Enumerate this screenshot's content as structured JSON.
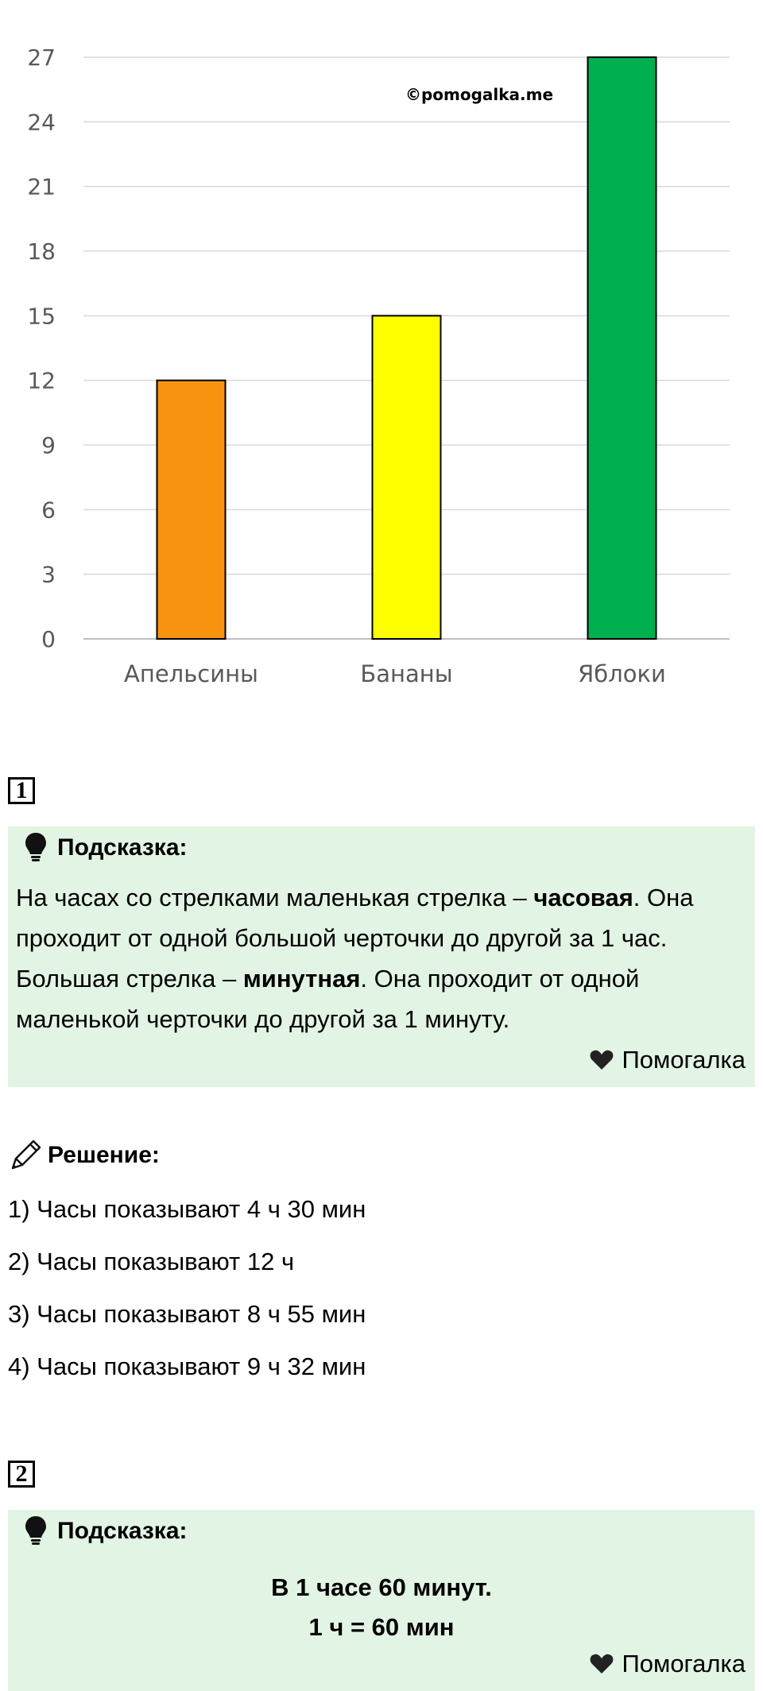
{
  "chart_data": {
    "type": "bar",
    "categories": [
      "Апельсины",
      "Бананы",
      "Яблоки"
    ],
    "values": [
      12,
      15,
      27
    ],
    "colors": [
      "#f7930f",
      "#ffff00",
      "#00b050"
    ],
    "ylim": [
      0,
      27
    ],
    "yticks": [
      0,
      3,
      6,
      9,
      12,
      15,
      18,
      21,
      24,
      27
    ],
    "watermark": "©pomogalka.me",
    "grid": true
  },
  "task1": {
    "number": "1",
    "hint": {
      "title": "Подсказка:",
      "line1_pre": "На часах со стрелками маленькая стрелка – ",
      "line1_bold": "часовая",
      "line1_post": ". Она",
      "line2": "проходит от одной большой черточки до другой за 1 час.",
      "line3_pre": "Большая стрелка – ",
      "line3_bold": "минутная",
      "line3_post": ". Она проходит от одной",
      "line4": "маленькой черточки до другой за 1 минуту.",
      "signature": "Помогалка"
    },
    "solution": {
      "title": "Решение:",
      "lines": [
        "1) Часы показывают 4 ч 30 мин",
        "2) Часы показывают 12 ч",
        "3) Часы показывают 8 ч 55 мин",
        "4) Часы показывают 9 ч 32 мин"
      ]
    }
  },
  "task2": {
    "number": "2",
    "hint": {
      "title": "Подсказка:",
      "line1": "В 1 часе 60 минут.",
      "line2": "1 ч = 60 мин",
      "signature": "Помогалка"
    }
  }
}
